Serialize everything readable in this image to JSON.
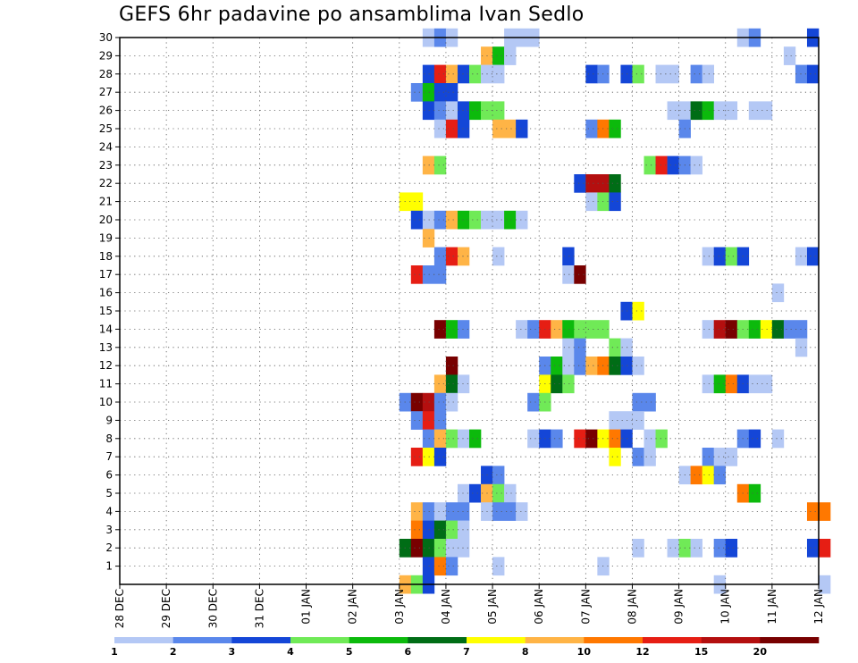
{
  "title": "GEFS 6hr padavine po ansamblima Ivan Sedlo",
  "chart_data": {
    "type": "heatmap",
    "title": "GEFS 6hr padavine po ansamblima Ivan Sedlo",
    "xlabel": "",
    "ylabel": "",
    "x_tick_labels": [
      "28 DEC",
      "29 DEC",
      "30 DEC",
      "31 DEC",
      "01 JAN",
      "02 JAN",
      "03 JAN",
      "04 JAN",
      "05 JAN",
      "06 JAN",
      "07 JAN",
      "08 JAN",
      "09 JAN",
      "10 JAN",
      "11 JAN",
      "12 JAN"
    ],
    "y_tick_labels": [
      "1",
      "2",
      "3",
      "4",
      "5",
      "6",
      "7",
      "8",
      "9",
      "10",
      "11",
      "12",
      "13",
      "14",
      "15",
      "16",
      "17",
      "18",
      "19",
      "20",
      "21",
      "22",
      "23",
      "24",
      "25",
      "26",
      "27",
      "28",
      "29",
      "30"
    ],
    "xlim_days": [
      0,
      15
    ],
    "ylim": [
      0,
      30
    ],
    "steps_per_day": 4,
    "grid": true,
    "legend_placement": "bottom",
    "colorbar": {
      "colors": [
        "#b4c8f5",
        "#5a87eb",
        "#1446d7",
        "#70ea57",
        "#0cba0c",
        "#006d16",
        "#ffff00",
        "#ffb446",
        "#ff7800",
        "#e61e14",
        "#b40f0f",
        "#780000"
      ],
      "labels": [
        "1",
        "2",
        "3",
        "4",
        "5",
        "6",
        "7",
        "8",
        "10",
        "12",
        "15",
        "20"
      ]
    },
    "cells_note": "Each cell [member, step_start, step_count, class_index]",
    "cells": [
      [
        30,
        26,
        1,
        1
      ],
      [
        30,
        27,
        1,
        2
      ],
      [
        30,
        28,
        1,
        1
      ],
      [
        30,
        33,
        3,
        1
      ],
      [
        30,
        53,
        1,
        1
      ],
      [
        30,
        54,
        1,
        2
      ],
      [
        30,
        59,
        1,
        3
      ],
      [
        29,
        31,
        1,
        8
      ],
      [
        29,
        32,
        1,
        5
      ],
      [
        29,
        33,
        1,
        1
      ],
      [
        29,
        57,
        1,
        1
      ],
      [
        28,
        26,
        1,
        3
      ],
      [
        28,
        27,
        1,
        10
      ],
      [
        28,
        28,
        1,
        8
      ],
      [
        28,
        29,
        1,
        3
      ],
      [
        28,
        30,
        1,
        4
      ],
      [
        28,
        31,
        2,
        1
      ],
      [
        28,
        40,
        1,
        3
      ],
      [
        28,
        41,
        1,
        2
      ],
      [
        28,
        43,
        1,
        3
      ],
      [
        28,
        44,
        1,
        4
      ],
      [
        28,
        46,
        2,
        1
      ],
      [
        28,
        49,
        1,
        2
      ],
      [
        28,
        50,
        1,
        1
      ],
      [
        28,
        58,
        1,
        2
      ],
      [
        28,
        59,
        1,
        3
      ],
      [
        27,
        25,
        1,
        2
      ],
      [
        27,
        26,
        1,
        5
      ],
      [
        27,
        27,
        2,
        3
      ],
      [
        26,
        26,
        1,
        3
      ],
      [
        26,
        27,
        1,
        2
      ],
      [
        26,
        28,
        1,
        1
      ],
      [
        26,
        29,
        1,
        3
      ],
      [
        26,
        30,
        1,
        5
      ],
      [
        26,
        31,
        2,
        4
      ],
      [
        26,
        47,
        2,
        1
      ],
      [
        26,
        49,
        1,
        6
      ],
      [
        26,
        50,
        1,
        5
      ],
      [
        26,
        51,
        2,
        1
      ],
      [
        26,
        54,
        2,
        1
      ],
      [
        25,
        27,
        1,
        1
      ],
      [
        25,
        28,
        1,
        10
      ],
      [
        25,
        29,
        1,
        3
      ],
      [
        25,
        32,
        2,
        8
      ],
      [
        25,
        34,
        1,
        3
      ],
      [
        25,
        40,
        1,
        2
      ],
      [
        25,
        41,
        1,
        9
      ],
      [
        25,
        42,
        1,
        5
      ],
      [
        25,
        48,
        1,
        2
      ],
      [
        23,
        26,
        1,
        8
      ],
      [
        23,
        27,
        1,
        4
      ],
      [
        23,
        45,
        1,
        4
      ],
      [
        23,
        46,
        1,
        10
      ],
      [
        23,
        47,
        1,
        3
      ],
      [
        23,
        48,
        1,
        2
      ],
      [
        23,
        49,
        1,
        1
      ],
      [
        22,
        39,
        1,
        3
      ],
      [
        22,
        40,
        2,
        11
      ],
      [
        22,
        42,
        1,
        6
      ],
      [
        21,
        24,
        2,
        7
      ],
      [
        21,
        40,
        1,
        1
      ],
      [
        21,
        41,
        1,
        4
      ],
      [
        21,
        42,
        1,
        3
      ],
      [
        20,
        25,
        1,
        3
      ],
      [
        20,
        26,
        1,
        1
      ],
      [
        20,
        27,
        1,
        2
      ],
      [
        20,
        28,
        1,
        8
      ],
      [
        20,
        29,
        1,
        5
      ],
      [
        20,
        30,
        1,
        4
      ],
      [
        20,
        31,
        2,
        1
      ],
      [
        20,
        33,
        1,
        5
      ],
      [
        20,
        34,
        1,
        1
      ],
      [
        19,
        26,
        1,
        8
      ],
      [
        18,
        27,
        1,
        2
      ],
      [
        18,
        28,
        1,
        10
      ],
      [
        18,
        29,
        1,
        8
      ],
      [
        18,
        32,
        1,
        1
      ],
      [
        18,
        38,
        1,
        3
      ],
      [
        18,
        50,
        1,
        1
      ],
      [
        18,
        51,
        1,
        3
      ],
      [
        18,
        52,
        1,
        4
      ],
      [
        18,
        53,
        1,
        3
      ],
      [
        18,
        58,
        1,
        1
      ],
      [
        18,
        59,
        1,
        3
      ],
      [
        17,
        25,
        1,
        10
      ],
      [
        17,
        26,
        2,
        2
      ],
      [
        17,
        38,
        1,
        1
      ],
      [
        17,
        39,
        1,
        12
      ],
      [
        16,
        56,
        1,
        1
      ],
      [
        15,
        43,
        1,
        3
      ],
      [
        15,
        44,
        1,
        7
      ],
      [
        14,
        27,
        1,
        12
      ],
      [
        14,
        28,
        1,
        5
      ],
      [
        14,
        29,
        1,
        2
      ],
      [
        14,
        34,
        1,
        1
      ],
      [
        14,
        35,
        1,
        2
      ],
      [
        14,
        36,
        1,
        10
      ],
      [
        14,
        37,
        1,
        8
      ],
      [
        14,
        38,
        1,
        5
      ],
      [
        14,
        39,
        3,
        4
      ],
      [
        14,
        50,
        1,
        1
      ],
      [
        14,
        51,
        1,
        11
      ],
      [
        14,
        52,
        1,
        12
      ],
      [
        14,
        53,
        1,
        4
      ],
      [
        14,
        54,
        1,
        5
      ],
      [
        14,
        55,
        1,
        7
      ],
      [
        14,
        56,
        1,
        6
      ],
      [
        14,
        57,
        2,
        2
      ],
      [
        13,
        38,
        1,
        1
      ],
      [
        13,
        39,
        1,
        2
      ],
      [
        13,
        42,
        1,
        4
      ],
      [
        13,
        43,
        1,
        1
      ],
      [
        13,
        58,
        1,
        1
      ],
      [
        12,
        28,
        1,
        12
      ],
      [
        12,
        36,
        1,
        2
      ],
      [
        12,
        37,
        1,
        5
      ],
      [
        12,
        38,
        1,
        1
      ],
      [
        12,
        39,
        1,
        2
      ],
      [
        12,
        40,
        1,
        8
      ],
      [
        12,
        41,
        1,
        9
      ],
      [
        12,
        42,
        1,
        6
      ],
      [
        12,
        43,
        1,
        3
      ],
      [
        12,
        44,
        1,
        1
      ],
      [
        11,
        27,
        1,
        8
      ],
      [
        11,
        28,
        1,
        6
      ],
      [
        11,
        29,
        1,
        1
      ],
      [
        11,
        36,
        1,
        7
      ],
      [
        11,
        37,
        1,
        6
      ],
      [
        11,
        38,
        1,
        4
      ],
      [
        11,
        50,
        1,
        1
      ],
      [
        11,
        51,
        1,
        5
      ],
      [
        11,
        52,
        1,
        9
      ],
      [
        11,
        53,
        1,
        3
      ],
      [
        11,
        54,
        2,
        1
      ],
      [
        10,
        24,
        1,
        2
      ],
      [
        10,
        25,
        1,
        12
      ],
      [
        10,
        26,
        1,
        11
      ],
      [
        10,
        27,
        1,
        2
      ],
      [
        10,
        28,
        1,
        1
      ],
      [
        10,
        35,
        1,
        2
      ],
      [
        10,
        36,
        1,
        4
      ],
      [
        10,
        44,
        2,
        2
      ],
      [
        9,
        25,
        1,
        2
      ],
      [
        9,
        26,
        1,
        10
      ],
      [
        9,
        27,
        1,
        2
      ],
      [
        9,
        42,
        3,
        1
      ],
      [
        8,
        26,
        1,
        2
      ],
      [
        8,
        27,
        1,
        8
      ],
      [
        8,
        28,
        1,
        4
      ],
      [
        8,
        29,
        1,
        1
      ],
      [
        8,
        30,
        1,
        5
      ],
      [
        8,
        35,
        1,
        1
      ],
      [
        8,
        36,
        1,
        3
      ],
      [
        8,
        37,
        1,
        2
      ],
      [
        8,
        39,
        1,
        10
      ],
      [
        8,
        40,
        1,
        12
      ],
      [
        8,
        41,
        1,
        7
      ],
      [
        8,
        42,
        1,
        9
      ],
      [
        8,
        43,
        1,
        3
      ],
      [
        8,
        45,
        1,
        1
      ],
      [
        8,
        46,
        1,
        4
      ],
      [
        8,
        53,
        1,
        2
      ],
      [
        8,
        54,
        1,
        3
      ],
      [
        8,
        56,
        1,
        1
      ],
      [
        7,
        25,
        1,
        10
      ],
      [
        7,
        26,
        1,
        7
      ],
      [
        7,
        27,
        1,
        3
      ],
      [
        7,
        42,
        1,
        7
      ],
      [
        7,
        44,
        1,
        2
      ],
      [
        7,
        45,
        1,
        1
      ],
      [
        7,
        50,
        1,
        2
      ],
      [
        7,
        51,
        2,
        1
      ],
      [
        6,
        31,
        1,
        3
      ],
      [
        6,
        32,
        1,
        2
      ],
      [
        6,
        48,
        1,
        1
      ],
      [
        6,
        49,
        1,
        9
      ],
      [
        6,
        50,
        1,
        7
      ],
      [
        6,
        51,
        1,
        2
      ],
      [
        5,
        29,
        1,
        1
      ],
      [
        5,
        30,
        1,
        3
      ],
      [
        5,
        31,
        1,
        8
      ],
      [
        5,
        32,
        1,
        4
      ],
      [
        5,
        33,
        1,
        1
      ],
      [
        5,
        53,
        1,
        9
      ],
      [
        5,
        54,
        1,
        5
      ],
      [
        4,
        25,
        1,
        8
      ],
      [
        4,
        26,
        1,
        2
      ],
      [
        4,
        27,
        1,
        1
      ],
      [
        4,
        28,
        2,
        2
      ],
      [
        4,
        31,
        1,
        1
      ],
      [
        4,
        32,
        2,
        2
      ],
      [
        4,
        34,
        1,
        1
      ],
      [
        4,
        59,
        2,
        9
      ],
      [
        3,
        25,
        1,
        9
      ],
      [
        3,
        26,
        1,
        3
      ],
      [
        3,
        27,
        1,
        6
      ],
      [
        3,
        28,
        1,
        4
      ],
      [
        3,
        29,
        1,
        1
      ],
      [
        2,
        24,
        1,
        6
      ],
      [
        2,
        25,
        1,
        12
      ],
      [
        2,
        26,
        1,
        6
      ],
      [
        2,
        27,
        1,
        4
      ],
      [
        2,
        28,
        2,
        1
      ],
      [
        2,
        44,
        1,
        1
      ],
      [
        2,
        47,
        1,
        1
      ],
      [
        2,
        48,
        1,
        4
      ],
      [
        2,
        49,
        1,
        1
      ],
      [
        2,
        51,
        1,
        2
      ],
      [
        2,
        52,
        1,
        3
      ],
      [
        2,
        59,
        1,
        3
      ],
      [
        2,
        60,
        1,
        10
      ],
      [
        1,
        26,
        1,
        3
      ],
      [
        1,
        27,
        1,
        9
      ],
      [
        1,
        28,
        1,
        2
      ],
      [
        1,
        32,
        1,
        1
      ],
      [
        1,
        41,
        1,
        1
      ],
      [
        0,
        24,
        1,
        8
      ],
      [
        0,
        25,
        1,
        4
      ],
      [
        0,
        26,
        1,
        3
      ],
      [
        0,
        51,
        1,
        1
      ],
      [
        0,
        60,
        1,
        1
      ]
    ]
  }
}
